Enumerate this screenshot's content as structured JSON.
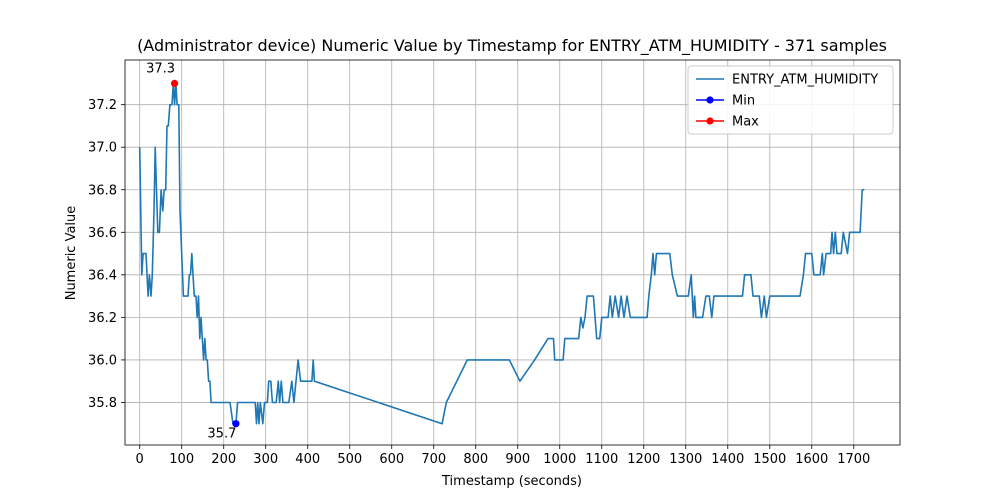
{
  "chart_data": {
    "type": "line",
    "title": "(Administrator device) Numeric Value by Timestamp for ENTRY_ATM_HUMIDITY - 371 samples",
    "xlabel": "Timestamp (seconds)",
    "ylabel": "Numeric Value",
    "xlim": [
      -35,
      1810
    ],
    "ylim": [
      35.6,
      37.41
    ],
    "xticks": [
      0,
      100,
      200,
      300,
      400,
      500,
      600,
      700,
      800,
      900,
      1000,
      1100,
      1200,
      1300,
      1400,
      1500,
      1600,
      1700
    ],
    "yticks": [
      35.8,
      36.0,
      36.2,
      36.4,
      36.6,
      36.8,
      37.0,
      37.2
    ],
    "grid": true,
    "legend_position": "top-right",
    "series": [
      {
        "name": "ENTRY_ATM_HUMIDITY",
        "color": "#1f77b4",
        "points": [
          [
            0,
            37.0
          ],
          [
            5,
            36.4
          ],
          [
            8,
            36.5
          ],
          [
            15,
            36.5
          ],
          [
            20,
            36.3
          ],
          [
            23,
            36.4
          ],
          [
            27,
            36.3
          ],
          [
            30,
            36.4
          ],
          [
            34,
            36.7
          ],
          [
            37,
            37.0
          ],
          [
            40,
            36.8
          ],
          [
            43,
            36.6
          ],
          [
            47,
            36.6
          ],
          [
            51,
            36.8
          ],
          [
            55,
            36.7
          ],
          [
            58,
            36.8
          ],
          [
            62,
            36.8
          ],
          [
            65,
            37.1
          ],
          [
            68,
            37.1
          ],
          [
            72,
            37.2
          ],
          [
            77,
            37.2
          ],
          [
            80,
            37.3
          ],
          [
            83,
            37.2
          ],
          [
            86,
            37.3
          ],
          [
            89,
            37.2
          ],
          [
            93,
            37.2
          ],
          [
            96,
            36.7
          ],
          [
            100,
            36.5
          ],
          [
            104,
            36.3
          ],
          [
            115,
            36.3
          ],
          [
            118,
            36.4
          ],
          [
            121,
            36.4
          ],
          [
            124,
            36.5
          ],
          [
            127,
            36.4
          ],
          [
            130,
            36.3
          ],
          [
            134,
            36.3
          ],
          [
            137,
            36.2
          ],
          [
            140,
            36.3
          ],
          [
            143,
            36.1
          ],
          [
            146,
            36.2
          ],
          [
            149,
            36.1
          ],
          [
            152,
            36.0
          ],
          [
            155,
            36.1
          ],
          [
            158,
            36.0
          ],
          [
            161,
            36.0
          ],
          [
            164,
            35.9
          ],
          [
            167,
            35.9
          ],
          [
            170,
            35.8
          ],
          [
            200,
            35.8
          ],
          [
            205,
            35.8
          ],
          [
            215,
            35.8
          ],
          [
            222,
            35.7
          ],
          [
            229,
            35.7
          ],
          [
            233,
            35.8
          ],
          [
            275,
            35.8
          ],
          [
            278,
            35.7
          ],
          [
            281,
            35.8
          ],
          [
            284,
            35.7
          ],
          [
            287,
            35.8
          ],
          [
            293,
            35.7
          ],
          [
            297,
            35.8
          ],
          [
            304,
            35.8
          ],
          [
            307,
            35.9
          ],
          [
            312,
            35.9
          ],
          [
            316,
            35.8
          ],
          [
            325,
            35.8
          ],
          [
            330,
            35.9
          ],
          [
            333,
            35.8
          ],
          [
            337,
            35.9
          ],
          [
            341,
            35.8
          ],
          [
            355,
            35.8
          ],
          [
            362,
            35.9
          ],
          [
            367,
            35.8
          ],
          [
            372,
            35.9
          ],
          [
            377,
            36.0
          ],
          [
            383,
            35.9
          ],
          [
            410,
            35.9
          ],
          [
            413,
            36.0
          ],
          [
            416,
            35.9
          ],
          [
            720,
            35.7
          ],
          [
            730,
            35.8
          ],
          [
            780,
            36.0
          ],
          [
            880,
            36.0
          ],
          [
            905,
            35.9
          ],
          [
            940,
            36.0
          ],
          [
            972,
            36.1
          ],
          [
            985,
            36.1
          ],
          [
            988,
            36.0
          ],
          [
            1008,
            36.0
          ],
          [
            1012,
            36.1
          ],
          [
            1045,
            36.1
          ],
          [
            1050,
            36.2
          ],
          [
            1055,
            36.15
          ],
          [
            1060,
            36.2
          ],
          [
            1065,
            36.3
          ],
          [
            1080,
            36.3
          ],
          [
            1088,
            36.1
          ],
          [
            1095,
            36.1
          ],
          [
            1100,
            36.2
          ],
          [
            1115,
            36.2
          ],
          [
            1120,
            36.3
          ],
          [
            1125,
            36.2
          ],
          [
            1132,
            36.3
          ],
          [
            1140,
            36.2
          ],
          [
            1146,
            36.3
          ],
          [
            1153,
            36.2
          ],
          [
            1160,
            36.3
          ],
          [
            1168,
            36.2
          ],
          [
            1208,
            36.2
          ],
          [
            1212,
            36.3
          ],
          [
            1218,
            36.4
          ],
          [
            1222,
            36.5
          ],
          [
            1226,
            36.4
          ],
          [
            1230,
            36.5
          ],
          [
            1262,
            36.5
          ],
          [
            1268,
            36.4
          ],
          [
            1280,
            36.3
          ],
          [
            1306,
            36.3
          ],
          [
            1313,
            36.4
          ],
          [
            1318,
            36.2
          ],
          [
            1321,
            36.3
          ],
          [
            1324,
            36.2
          ],
          [
            1340,
            36.2
          ],
          [
            1348,
            36.3
          ],
          [
            1356,
            36.3
          ],
          [
            1362,
            36.2
          ],
          [
            1367,
            36.3
          ],
          [
            1395,
            36.3
          ],
          [
            1435,
            36.3
          ],
          [
            1440,
            36.4
          ],
          [
            1455,
            36.4
          ],
          [
            1460,
            36.3
          ],
          [
            1475,
            36.3
          ],
          [
            1480,
            36.2
          ],
          [
            1487,
            36.3
          ],
          [
            1492,
            36.2
          ],
          [
            1500,
            36.3
          ],
          [
            1572,
            36.3
          ],
          [
            1580,
            36.4
          ],
          [
            1585,
            36.5
          ],
          [
            1600,
            36.5
          ],
          [
            1605,
            36.4
          ],
          [
            1620,
            36.4
          ],
          [
            1625,
            36.5
          ],
          [
            1628,
            36.4
          ],
          [
            1634,
            36.5
          ],
          [
            1645,
            36.5
          ],
          [
            1648,
            36.6
          ],
          [
            1652,
            36.5
          ],
          [
            1656,
            36.6
          ],
          [
            1660,
            36.5
          ],
          [
            1670,
            36.5
          ],
          [
            1675,
            36.6
          ],
          [
            1685,
            36.5
          ],
          [
            1690,
            36.6
          ],
          [
            1715,
            36.6
          ],
          [
            1720,
            36.8
          ],
          [
            1725,
            36.8
          ]
        ]
      }
    ],
    "markers": [
      {
        "name": "Min",
        "x": 229,
        "y": 35.7,
        "label": "35.7",
        "color": "#0000ff"
      },
      {
        "name": "Max",
        "x": 83,
        "y": 37.3,
        "label": "37.3",
        "color": "#ff0000"
      }
    ],
    "legend": [
      {
        "label": "ENTRY_ATM_HUMIDITY",
        "kind": "line",
        "color": "#1f77b4"
      },
      {
        "label": "Min",
        "kind": "marker-line",
        "color": "#0000ff"
      },
      {
        "label": "Max",
        "kind": "marker-line",
        "color": "#ff0000"
      }
    ]
  }
}
